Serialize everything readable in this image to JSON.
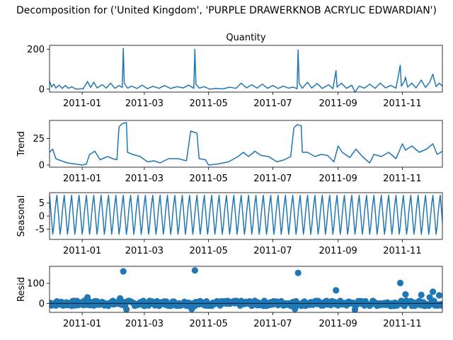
{
  "suptitle": "Decomposition for ('United Kingdom', 'PURPLE DRAWERKNOB ACRYLIC EDWARDIAN')",
  "chart_data": [
    {
      "type": "line",
      "title": "Quantity",
      "ylabel": "",
      "x_start": "2010-12-01",
      "x_end": "2011-12-09",
      "xticks": [
        "2011-01",
        "2011-03",
        "2011-05",
        "2011-07",
        "2011-09",
        "2011-11"
      ],
      "ylim": [
        -15,
        220
      ],
      "yticks": [
        0,
        200
      ],
      "color": "#1f77b4",
      "points": [
        [
          "2010-12-01",
          40
        ],
        [
          "2010-12-03",
          10
        ],
        [
          "2010-12-05",
          25
        ],
        [
          "2010-12-07",
          5
        ],
        [
          "2010-12-10",
          20
        ],
        [
          "2010-12-13",
          3
        ],
        [
          "2010-12-16",
          18
        ],
        [
          "2010-12-19",
          4
        ],
        [
          "2010-12-22",
          12
        ],
        [
          "2010-12-26",
          0
        ],
        [
          "2011-01-02",
          2
        ],
        [
          "2011-01-06",
          38
        ],
        [
          "2011-01-09",
          8
        ],
        [
          "2011-01-12",
          35
        ],
        [
          "2011-01-15",
          6
        ],
        [
          "2011-01-20",
          22
        ],
        [
          "2011-01-24",
          5
        ],
        [
          "2011-01-28",
          30
        ],
        [
          "2011-02-01",
          4
        ],
        [
          "2011-02-05",
          18
        ],
        [
          "2011-02-08",
          8
        ],
        [
          "2011-02-09",
          205
        ],
        [
          "2011-02-10",
          30
        ],
        [
          "2011-02-13",
          5
        ],
        [
          "2011-02-17",
          15
        ],
        [
          "2011-02-22",
          3
        ],
        [
          "2011-02-27",
          20
        ],
        [
          "2011-03-04",
          2
        ],
        [
          "2011-03-09",
          14
        ],
        [
          "2011-03-15",
          4
        ],
        [
          "2011-03-20",
          18
        ],
        [
          "2011-03-26",
          3
        ],
        [
          "2011-04-01",
          12
        ],
        [
          "2011-04-07",
          6
        ],
        [
          "2011-04-12",
          20
        ],
        [
          "2011-04-17",
          4
        ],
        [
          "2011-04-18",
          200
        ],
        [
          "2011-04-19",
          25
        ],
        [
          "2011-04-22",
          5
        ],
        [
          "2011-04-27",
          12
        ],
        [
          "2011-05-02",
          0
        ],
        [
          "2011-05-08",
          3
        ],
        [
          "2011-05-15",
          1
        ],
        [
          "2011-05-21",
          10
        ],
        [
          "2011-05-27",
          4
        ],
        [
          "2011-06-01",
          30
        ],
        [
          "2011-06-06",
          6
        ],
        [
          "2011-06-11",
          22
        ],
        [
          "2011-06-16",
          5
        ],
        [
          "2011-06-21",
          25
        ],
        [
          "2011-06-26",
          4
        ],
        [
          "2011-07-01",
          18
        ],
        [
          "2011-07-06",
          3
        ],
        [
          "2011-07-11",
          15
        ],
        [
          "2011-07-16",
          5
        ],
        [
          "2011-07-20",
          10
        ],
        [
          "2011-07-24",
          2
        ],
        [
          "2011-07-25",
          197
        ],
        [
          "2011-07-26",
          30
        ],
        [
          "2011-07-29",
          4
        ],
        [
          "2011-08-03",
          35
        ],
        [
          "2011-08-07",
          5
        ],
        [
          "2011-08-12",
          28
        ],
        [
          "2011-08-17",
          3
        ],
        [
          "2011-08-23",
          22
        ],
        [
          "2011-08-27",
          2
        ],
        [
          "2011-08-30",
          93
        ],
        [
          "2011-08-31",
          10
        ],
        [
          "2011-09-04",
          30
        ],
        [
          "2011-09-09",
          4
        ],
        [
          "2011-09-14",
          20
        ],
        [
          "2011-09-17",
          -15
        ],
        [
          "2011-09-21",
          15
        ],
        [
          "2011-09-26",
          5
        ],
        [
          "2011-10-01",
          25
        ],
        [
          "2011-10-06",
          4
        ],
        [
          "2011-10-11",
          30
        ],
        [
          "2011-10-16",
          6
        ],
        [
          "2011-10-21",
          18
        ],
        [
          "2011-10-26",
          5
        ],
        [
          "2011-10-30",
          120
        ],
        [
          "2011-10-31",
          15
        ],
        [
          "2011-11-03",
          40
        ],
        [
          "2011-11-04",
          60
        ],
        [
          "2011-11-06",
          10
        ],
        [
          "2011-11-10",
          30
        ],
        [
          "2011-11-14",
          6
        ],
        [
          "2011-11-19",
          45
        ],
        [
          "2011-11-23",
          8
        ],
        [
          "2011-11-27",
          35
        ],
        [
          "2011-11-30",
          75
        ],
        [
          "2011-12-03",
          12
        ],
        [
          "2011-12-06",
          30
        ],
        [
          "2011-12-09",
          15
        ]
      ]
    },
    {
      "type": "line",
      "title": "",
      "ylabel": "Trend",
      "x_start": "2010-12-01",
      "x_end": "2011-12-09",
      "xticks": [
        "2011-01",
        "2011-03",
        "2011-05",
        "2011-07",
        "2011-09",
        "2011-11"
      ],
      "ylim": [
        -2,
        42
      ],
      "yticks": [
        0,
        25
      ],
      "color": "#1f77b4",
      "points": [
        [
          "2010-12-01",
          12
        ],
        [
          "2010-12-04",
          15
        ],
        [
          "2010-12-07",
          6
        ],
        [
          "2010-12-12",
          4
        ],
        [
          "2010-12-18",
          2
        ],
        [
          "2010-12-25",
          1
        ],
        [
          "2011-01-01",
          0
        ],
        [
          "2011-01-05",
          1
        ],
        [
          "2011-01-08",
          10
        ],
        [
          "2011-01-13",
          13
        ],
        [
          "2011-01-18",
          5
        ],
        [
          "2011-01-25",
          8
        ],
        [
          "2011-01-30",
          6
        ],
        [
          "2011-02-03",
          5
        ],
        [
          "2011-02-05",
          36
        ],
        [
          "2011-02-08",
          39
        ],
        [
          "2011-02-12",
          40
        ],
        [
          "2011-02-13",
          12
        ],
        [
          "2011-02-18",
          10
        ],
        [
          "2011-02-25",
          8
        ],
        [
          "2011-03-04",
          3
        ],
        [
          "2011-03-10",
          4
        ],
        [
          "2011-03-16",
          2
        ],
        [
          "2011-03-24",
          6
        ],
        [
          "2011-04-02",
          6
        ],
        [
          "2011-04-10",
          4
        ],
        [
          "2011-04-14",
          32
        ],
        [
          "2011-04-20",
          30
        ],
        [
          "2011-04-22",
          6
        ],
        [
          "2011-04-28",
          5
        ],
        [
          "2011-05-01",
          0
        ],
        [
          "2011-05-10",
          1
        ],
        [
          "2011-05-20",
          3
        ],
        [
          "2011-05-29",
          8
        ],
        [
          "2011-06-03",
          12
        ],
        [
          "2011-06-08",
          8
        ],
        [
          "2011-06-14",
          13
        ],
        [
          "2011-06-20",
          9
        ],
        [
          "2011-06-27",
          8
        ],
        [
          "2011-07-05",
          3
        ],
        [
          "2011-07-12",
          5
        ],
        [
          "2011-07-18",
          8
        ],
        [
          "2011-07-21",
          35
        ],
        [
          "2011-07-24",
          38
        ],
        [
          "2011-07-28",
          37
        ],
        [
          "2011-07-29",
          12
        ],
        [
          "2011-08-03",
          12
        ],
        [
          "2011-08-10",
          8
        ],
        [
          "2011-08-16",
          10
        ],
        [
          "2011-08-22",
          9
        ],
        [
          "2011-08-28",
          3
        ],
        [
          "2011-09-01",
          18
        ],
        [
          "2011-09-05",
          12
        ],
        [
          "2011-09-12",
          7
        ],
        [
          "2011-09-18",
          15
        ],
        [
          "2011-09-24",
          8
        ],
        [
          "2011-10-01",
          2
        ],
        [
          "2011-10-05",
          10
        ],
        [
          "2011-10-12",
          8
        ],
        [
          "2011-10-19",
          12
        ],
        [
          "2011-10-26",
          6
        ],
        [
          "2011-11-01",
          20
        ],
        [
          "2011-11-04",
          14
        ],
        [
          "2011-11-10",
          18
        ],
        [
          "2011-11-17",
          12
        ],
        [
          "2011-11-24",
          15
        ],
        [
          "2011-11-30",
          20
        ],
        [
          "2011-12-04",
          10
        ],
        [
          "2011-12-09",
          13
        ]
      ]
    },
    {
      "type": "line",
      "title": "",
      "ylabel": "Seasonal",
      "x_start": "2010-12-01",
      "x_end": "2011-12-09",
      "xticks": [
        "2011-01",
        "2011-03",
        "2011-05",
        "2011-07",
        "2011-09",
        "2011-11"
      ],
      "ylim": [
        -9,
        9
      ],
      "yticks": [
        -5,
        0,
        5
      ],
      "color": "#1f77b4",
      "seasonal": {
        "period_days": 7,
        "pattern": [
          8,
          3,
          -2,
          -7,
          -4,
          1,
          5
        ]
      }
    },
    {
      "type": "scatter",
      "title": "",
      "ylabel": "Resid",
      "x_start": "2010-12-01",
      "x_end": "2011-12-09",
      "xticks": [
        "2011-01",
        "2011-03",
        "2011-05",
        "2011-07",
        "2011-09",
        "2011-11"
      ],
      "ylim": [
        -45,
        185
      ],
      "yticks": [
        0,
        100
      ],
      "color": "#1f77b4",
      "baseline": 0,
      "outliers": [
        [
          "2011-02-09",
          160
        ],
        [
          "2011-04-18",
          165
        ],
        [
          "2011-07-25",
          152
        ],
        [
          "2011-08-30",
          65
        ],
        [
          "2011-10-30",
          102
        ],
        [
          "2011-11-04",
          45
        ],
        [
          "2011-11-19",
          42
        ],
        [
          "2011-11-27",
          30
        ],
        [
          "2011-11-30",
          58
        ],
        [
          "2011-12-06",
          40
        ],
        [
          "2011-02-06",
          25
        ],
        [
          "2011-01-06",
          30
        ],
        [
          "2011-04-15",
          -28
        ],
        [
          "2011-07-22",
          -28
        ],
        [
          "2011-09-17",
          -32
        ],
        [
          "2011-02-12",
          -30
        ]
      ]
    }
  ]
}
